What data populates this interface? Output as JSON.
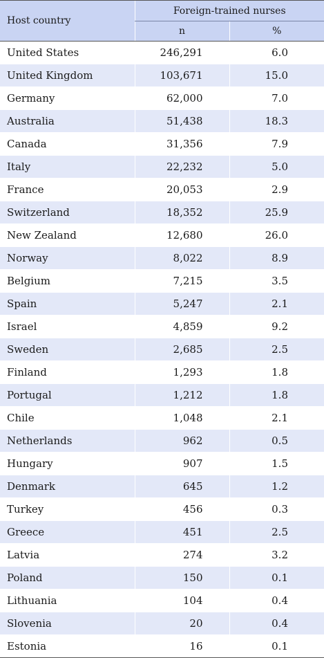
{
  "table": {
    "header": {
      "host_country": "Host country",
      "group": "Foreign-trained nurses",
      "n": "n",
      "pct": "%"
    },
    "rows": [
      {
        "country": "United States",
        "n": "246,291",
        "pct": "6.0"
      },
      {
        "country": "United Kingdom",
        "n": "103,671",
        "pct": "15.0"
      },
      {
        "country": "Germany",
        "n": "62,000",
        "pct": "7.0"
      },
      {
        "country": "Australia",
        "n": "51,438",
        "pct": "18.3"
      },
      {
        "country": "Canada",
        "n": "31,356",
        "pct": "7.9"
      },
      {
        "country": "Italy",
        "n": "22,232",
        "pct": "5.0"
      },
      {
        "country": "France",
        "n": "20,053",
        "pct": "2.9"
      },
      {
        "country": "Switzerland",
        "n": "18,352",
        "pct": "25.9"
      },
      {
        "country": "New Zealand",
        "n": "12,680",
        "pct": "26.0"
      },
      {
        "country": "Norway",
        "n": "8,022",
        "pct": "8.9"
      },
      {
        "country": "Belgium",
        "n": "7,215",
        "pct": "3.5"
      },
      {
        "country": "Spain",
        "n": "5,247",
        "pct": "2.1"
      },
      {
        "country": "Israel",
        "n": "4,859",
        "pct": "9.2"
      },
      {
        "country": "Sweden",
        "n": "2,685",
        "pct": "2.5"
      },
      {
        "country": "Finland",
        "n": "1,293",
        "pct": "1.8"
      },
      {
        "country": "Portugal",
        "n": "1,212",
        "pct": "1.8"
      },
      {
        "country": "Chile",
        "n": "1,048",
        "pct": "2.1"
      },
      {
        "country": "Netherlands",
        "n": "962",
        "pct": "0.5"
      },
      {
        "country": "Hungary",
        "n": "907",
        "pct": "1.5"
      },
      {
        "country": "Denmark",
        "n": "645",
        "pct": "1.2"
      },
      {
        "country": "Turkey",
        "n": "456",
        "pct": "0.3"
      },
      {
        "country": "Greece",
        "n": "451",
        "pct": "2.5"
      },
      {
        "country": "Latvia",
        "n": "274",
        "pct": "3.2"
      },
      {
        "country": "Poland",
        "n": "150",
        "pct": "0.1"
      },
      {
        "country": "Lithuania",
        "n": "104",
        "pct": "0.4"
      },
      {
        "country": "Slovenia",
        "n": "20",
        "pct": "0.4"
      },
      {
        "country": "Estonia",
        "n": "16",
        "pct": "0.1"
      }
    ]
  },
  "colors": {
    "header_bg": "#c9d4f3",
    "stripe_bg": "#e3e8f8"
  }
}
